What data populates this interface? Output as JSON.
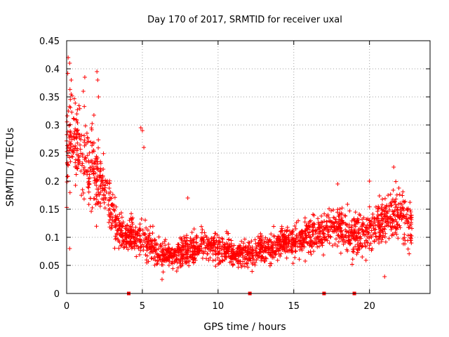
{
  "chart_data": {
    "type": "scatter",
    "title": "Day 170 of 2017, SRMTID for receiver uxal",
    "xlabel": "GPS time / hours",
    "ylabel": "SRMTID / TECUs",
    "xlim": [
      0,
      24
    ],
    "ylim": [
      0,
      0.45
    ],
    "xticks": [
      0,
      5,
      10,
      15,
      20
    ],
    "xtick_labels": [
      "0",
      "5",
      "10",
      "15",
      "20"
    ],
    "yticks": [
      0,
      0.05,
      0.1,
      0.15,
      0.2,
      0.25,
      0.3,
      0.35,
      0.4,
      0.45
    ],
    "ytick_labels": [
      "0",
      "0.05",
      "0.1",
      "0.15",
      "0.2",
      "0.25",
      "0.3",
      "0.35",
      "0.4",
      "0.45"
    ],
    "grid": true,
    "marker": "+",
    "series_color": "#ff0000",
    "gap_markers_x": [
      4.1,
      12.1,
      17.0,
      19.0
    ],
    "trend": {
      "x": [
        0,
        0.3,
        0.8,
        1.5,
        2.2,
        2.8,
        3.3,
        4.0,
        4.8,
        5.5,
        6.0,
        7.0,
        8.0,
        9.0,
        10.0,
        11.0,
        12.0,
        13.0,
        14.0,
        15.0,
        16.0,
        17.0,
        18.0,
        19.0,
        20.0,
        21.0,
        22.0,
        22.8
      ],
      "y": [
        0.27,
        0.29,
        0.26,
        0.23,
        0.2,
        0.17,
        0.12,
        0.1,
        0.1,
        0.09,
        0.07,
        0.065,
        0.075,
        0.085,
        0.08,
        0.07,
        0.07,
        0.08,
        0.09,
        0.09,
        0.1,
        0.11,
        0.12,
        0.1,
        0.11,
        0.13,
        0.14,
        0.12
      ],
      "spread": [
        0.09,
        0.09,
        0.07,
        0.07,
        0.06,
        0.05,
        0.03,
        0.025,
        0.03,
        0.03,
        0.025,
        0.02,
        0.025,
        0.025,
        0.025,
        0.02,
        0.02,
        0.025,
        0.025,
        0.025,
        0.03,
        0.03,
        0.03,
        0.035,
        0.035,
        0.04,
        0.045,
        0.04
      ]
    },
    "spikes": [
      {
        "x": 0.1,
        "y": 0.42
      },
      {
        "x": 0.2,
        "y": 0.41
      },
      {
        "x": 0.3,
        "y": 0.38
      },
      {
        "x": 1.2,
        "y": 0.385
      },
      {
        "x": 2.0,
        "y": 0.395
      },
      {
        "x": 2.05,
        "y": 0.38
      },
      {
        "x": 1.1,
        "y": 0.36
      },
      {
        "x": 2.1,
        "y": 0.35
      },
      {
        "x": 4.9,
        "y": 0.295
      },
      {
        "x": 5.0,
        "y": 0.29
      },
      {
        "x": 5.1,
        "y": 0.26
      },
      {
        "x": 8.0,
        "y": 0.17
      },
      {
        "x": 17.9,
        "y": 0.195
      },
      {
        "x": 21.6,
        "y": 0.225
      },
      {
        "x": 20.0,
        "y": 0.2
      },
      {
        "x": 0.2,
        "y": 0.08
      },
      {
        "x": 21.0,
        "y": 0.03
      },
      {
        "x": 6.3,
        "y": 0.025
      }
    ],
    "n_points": 2200
  }
}
